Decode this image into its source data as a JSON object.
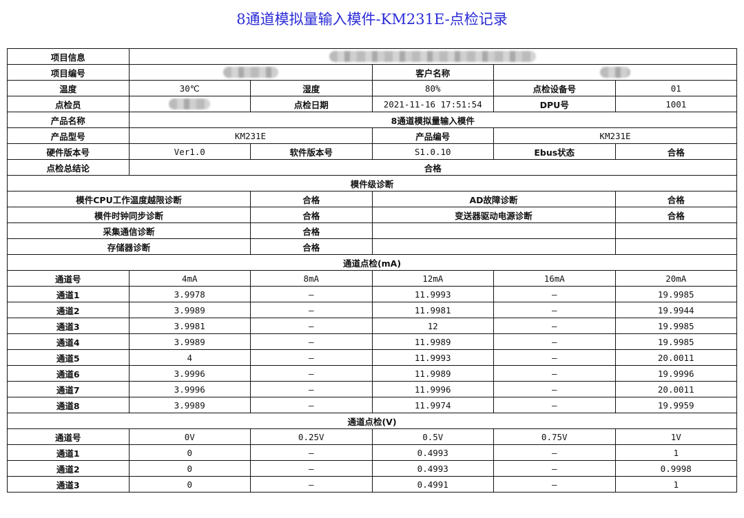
{
  "title": "8通道模拟量输入模件-KM231E-点检记录",
  "info": {
    "project_info_label": "项目信息",
    "project_no_label": "项目编号",
    "customer_label": "客户名称",
    "temp_label": "温度",
    "temp": "30℃",
    "humidity_label": "湿度",
    "humidity": "80%",
    "device_no_label": "点检设备号",
    "device_no": "01",
    "inspector_label": "点检员",
    "date_label": "点检日期",
    "date": "2021-11-16 17:51:54",
    "dpu_label": "DPU号",
    "dpu": "1001",
    "product_name_label": "产品名称",
    "product_name": "8通道模拟量输入模件",
    "product_model_label": "产品型号",
    "product_model": "KM231E",
    "product_no_label": "产品编号",
    "product_no": "KM231E",
    "hw_label": "硬件版本号",
    "hw": "Ver1.0",
    "sw_label": "软件版本号",
    "sw": "S1.0.10",
    "ebus_label": "Ebus状态",
    "ebus": "合格",
    "conclusion_label": "点检总结论",
    "conclusion": "合格"
  },
  "diag": {
    "header": "模件级诊断",
    "rows": [
      [
        "模件CPU工作温度越限诊断",
        "合格",
        "AD故障诊断",
        "合格"
      ],
      [
        "模件时钟同步诊断",
        "合格",
        "变送器驱动电源诊断",
        "合格"
      ],
      [
        "采集通信诊断",
        "合格",
        "",
        ""
      ],
      [
        "存储器诊断",
        "合格",
        "",
        ""
      ]
    ]
  },
  "ma": {
    "header": "通道点检(mA)",
    "columns": [
      "通道号",
      "4mA",
      "8mA",
      "12mA",
      "16mA",
      "20mA"
    ],
    "rows": [
      [
        "通道1",
        "3.9978",
        "—",
        "11.9993",
        "—",
        "19.9985"
      ],
      [
        "通道2",
        "3.9989",
        "—",
        "11.9981",
        "—",
        "19.9944"
      ],
      [
        "通道3",
        "3.9981",
        "—",
        "12",
        "—",
        "19.9985"
      ],
      [
        "通道4",
        "3.9989",
        "—",
        "11.9989",
        "—",
        "19.9985"
      ],
      [
        "通道5",
        "4",
        "—",
        "11.9993",
        "—",
        "20.0011"
      ],
      [
        "通道6",
        "3.9996",
        "—",
        "11.9989",
        "—",
        "19.9996"
      ],
      [
        "通道7",
        "3.9996",
        "—",
        "11.9996",
        "—",
        "20.0011"
      ],
      [
        "通道8",
        "3.9989",
        "—",
        "11.9974",
        "—",
        "19.9959"
      ]
    ]
  },
  "v": {
    "header": "通道点检(V)",
    "columns": [
      "通道号",
      "0V",
      "0.25V",
      "0.5V",
      "0.75V",
      "1V"
    ],
    "rows": [
      [
        "通道1",
        "0",
        "—",
        "0.4993",
        "—",
        "1"
      ],
      [
        "通道2",
        "0",
        "—",
        "0.4993",
        "—",
        "0.9998"
      ],
      [
        "通道3",
        "0",
        "—",
        "0.4991",
        "—",
        "1"
      ]
    ]
  }
}
